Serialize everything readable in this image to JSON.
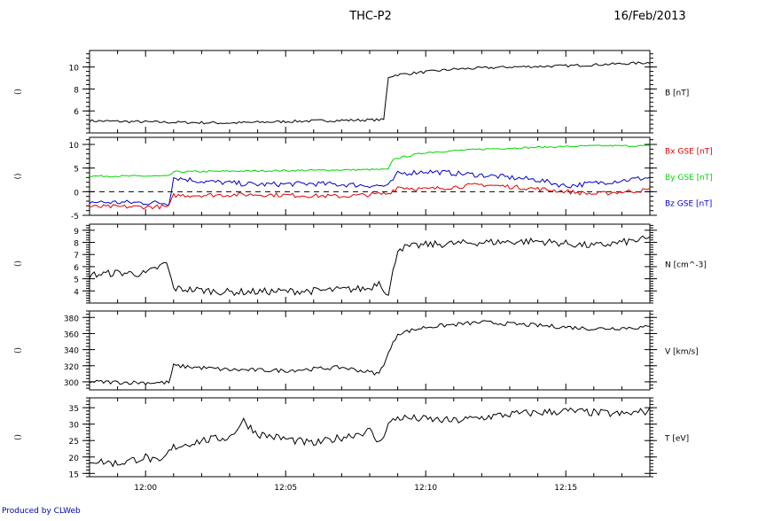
{
  "header": {
    "title": "THC-P2",
    "date": "16/Feb/2013"
  },
  "footer": {
    "credit": "Produced by CLWeb"
  },
  "colors": {
    "line": "#000000",
    "bx": "#e00000",
    "by": "#00d800",
    "bz": "#0000cc",
    "credit": "#0000b0"
  },
  "chart_data": {
    "type": "line",
    "x_axis": {
      "start": "11:58",
      "end": "12:18",
      "tick_labels": [
        "12:00",
        "12:05",
        "12:10",
        "12:15"
      ]
    },
    "panels": [
      {
        "id": "b",
        "side_label": "()",
        "ylim": [
          4,
          11.5
        ],
        "ticks": [
          "6",
          "8",
          "10"
        ],
        "labels": [
          {
            "text": "B [nT]",
            "color": "#000000"
          }
        ],
        "series": [
          {
            "color": "#000000",
            "noise": 0.12,
            "x": [
              "11:58",
              "12:00",
              "12:03",
              "12:06",
              "12:08:30",
              "12:08:40",
              "12:09",
              "12:11",
              "12:13",
              "12:15",
              "12:17",
              "12:18"
            ],
            "y": [
              5.1,
              5.0,
              4.9,
              5.1,
              5.2,
              9.1,
              9.3,
              9.8,
              10.0,
              10.1,
              10.3,
              10.4
            ]
          }
        ]
      },
      {
        "id": "bgse",
        "side_label": "()",
        "ylim": [
          -5,
          11.5
        ],
        "ticks": [
          "-5",
          "0",
          "5",
          "10"
        ],
        "zero_line": true,
        "labels": [
          {
            "text": "Bx GSE [nT]",
            "color": "#e00000"
          },
          {
            "text": "By GSE [nT]",
            "color": "#00d800"
          },
          {
            "text": "Bz GSE [nT]",
            "color": "#0000cc"
          }
        ],
        "series": [
          {
            "color": "#00d800",
            "noise": 0.18,
            "x": [
              "11:58",
              "12:00:50",
              "12:01",
              "12:04",
              "12:07",
              "12:08:40",
              "12:08:50",
              "12:10",
              "12:12",
              "12:14",
              "12:16",
              "12:18"
            ],
            "y": [
              3.3,
              3.3,
              4.2,
              4.4,
              4.6,
              4.7,
              6.9,
              8.3,
              9.0,
              9.4,
              9.7,
              9.7
            ]
          },
          {
            "color": "#0000cc",
            "noise": 0.55,
            "x": [
              "11:58",
              "12:00:50",
              "12:01",
              "12:02",
              "12:04",
              "12:06",
              "12:08:40",
              "12:09",
              "12:10",
              "12:12",
              "12:14",
              "12:15",
              "12:17",
              "12:18"
            ],
            "y": [
              -2.2,
              -2.4,
              3.0,
              2.2,
              1.5,
              1.7,
              1.2,
              3.8,
              4.3,
              3.5,
              2.5,
              1.2,
              2.4,
              3.0
            ]
          },
          {
            "color": "#e00000",
            "noise": 0.45,
            "x": [
              "11:58",
              "12:00:50",
              "12:01",
              "12:04",
              "12:07",
              "12:08:40",
              "12:09",
              "12:10",
              "12:12",
              "12:14",
              "12:16",
              "12:18"
            ],
            "y": [
              -3.2,
              -3.2,
              -0.8,
              -0.6,
              -1.0,
              -0.4,
              1.0,
              0.5,
              1.5,
              0.6,
              -0.5,
              0.4
            ]
          }
        ]
      },
      {
        "id": "n",
        "side_label": "()",
        "ylim": [
          3,
          9.5
        ],
        "ticks": [
          "4",
          "5",
          "6",
          "7",
          "8",
          "9"
        ],
        "labels": [
          {
            "text": "N [cm^-3]",
            "color": "#000000"
          }
        ],
        "series": [
          {
            "color": "#000000",
            "noise": 0.3,
            "x": [
              "11:58",
              "11:59",
              "12:00",
              "12:00:45",
              "12:01",
              "12:03",
              "12:06",
              "12:08",
              "12:08:20",
              "12:08:40",
              "12:09",
              "12:10",
              "12:12",
              "12:14",
              "12:16",
              "12:18"
            ],
            "y": [
              5.3,
              5.5,
              5.4,
              6.3,
              4.2,
              3.9,
              4.0,
              4.2,
              4.8,
              3.6,
              7.5,
              7.8,
              8.0,
              8.1,
              7.7,
              8.3
            ]
          }
        ]
      },
      {
        "id": "v",
        "side_label": "()",
        "ylim": [
          290,
          388
        ],
        "ticks": [
          "300",
          "320",
          "340",
          "360",
          "380"
        ],
        "labels": [
          {
            "text": "V [km/s]",
            "color": "#000000"
          }
        ],
        "series": [
          {
            "color": "#000000",
            "noise": 2.5,
            "x": [
              "11:58",
              "12:00",
              "12:00:50",
              "12:01",
              "12:03",
              "12:05",
              "12:07",
              "12:08:20",
              "12:08:40",
              "12:09",
              "12:10",
              "12:12",
              "12:14",
              "12:16",
              "12:18"
            ],
            "y": [
              300,
              299,
              299,
              320,
              315,
              314,
              318,
              310,
              335,
              360,
              368,
              374,
              370,
              366,
              368
            ]
          }
        ]
      },
      {
        "id": "t",
        "side_label": "()",
        "ylim": [
          14,
          38
        ],
        "ticks": [
          "15",
          "20",
          "25",
          "30",
          "35"
        ],
        "labels": [
          {
            "text": "T [eV]",
            "color": "#000000"
          }
        ],
        "series": [
          {
            "color": "#000000",
            "noise": 1.2,
            "x": [
              "11:58",
              "11:59",
              "12:00",
              "12:00:30",
              "12:01",
              "12:02",
              "12:03",
              "12:03:30",
              "12:04",
              "12:06",
              "12:08",
              "12:08:20",
              "12:08:40",
              "12:09",
              "12:11",
              "12:13",
              "12:15",
              "12:17",
              "12:18"
            ],
            "y": [
              19,
              18,
              20,
              18,
              23,
              25,
              26,
              31,
              27,
              24,
              28,
              24,
              30,
              32,
              31,
              33,
              34,
              33,
              34
            ]
          }
        ]
      }
    ]
  }
}
